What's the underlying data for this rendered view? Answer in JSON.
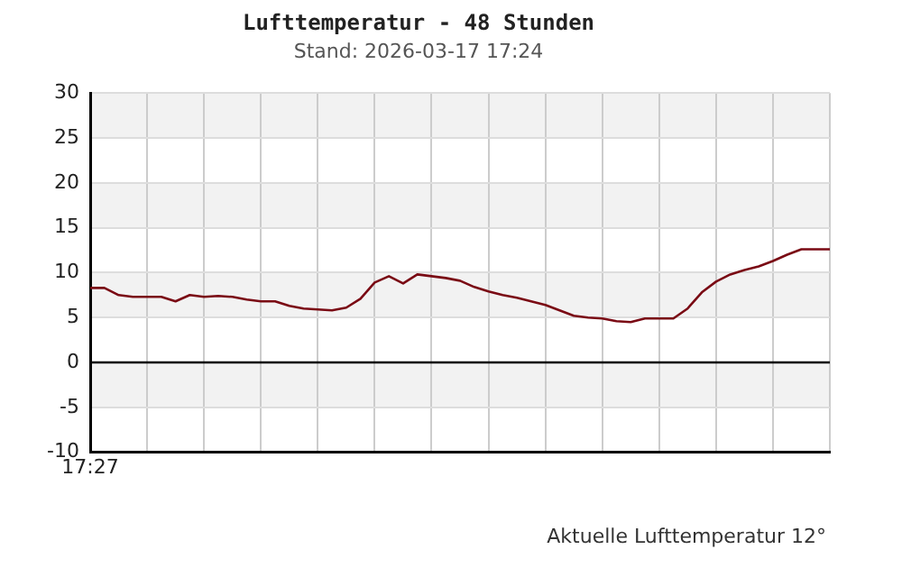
{
  "chart_data": {
    "type": "line",
    "title": "Lufttemperatur - 48 Stunden",
    "subtitle": "Stand: 2026-03-17 17:24",
    "categories": [
      "17:27",
      null,
      null,
      null,
      null,
      null,
      null,
      null,
      null,
      null,
      null,
      null,
      null,
      null,
      null,
      null,
      null,
      null,
      null,
      null,
      null,
      null,
      null,
      null,
      null,
      null,
      null,
      null,
      null,
      null,
      null,
      null,
      null,
      null,
      null,
      null,
      null,
      null,
      null,
      null,
      null,
      null,
      null,
      null,
      null,
      null,
      null,
      null,
      null,
      null,
      null,
      null,
      null
    ],
    "series": [
      {
        "color": "#7a0a14",
        "values": [
          8.3,
          8.3,
          7.5,
          7.3,
          7.3,
          7.3,
          6.8,
          7.5,
          7.3,
          7.4,
          7.3,
          7.0,
          6.8,
          6.8,
          6.3,
          6.0,
          5.9,
          5.8,
          6.1,
          7.1,
          8.9,
          9.6,
          8.8,
          9.8,
          9.6,
          9.4,
          9.1,
          8.4,
          7.9,
          7.5,
          7.2,
          6.8,
          6.4,
          5.8,
          5.2,
          5.0,
          4.9,
          4.6,
          4.5,
          4.9,
          4.9,
          4.9,
          6.0,
          7.8,
          9.0,
          9.8,
          10.3,
          10.7,
          11.3,
          12.0,
          12.6,
          12.6,
          12.6
        ]
      }
    ],
    "ylim": [
      -10,
      30
    ],
    "yticks": [
      -10,
      -5,
      0,
      5,
      10,
      15,
      20,
      25,
      30
    ],
    "grid": true,
    "marker": "none",
    "line_style": "solid",
    "bands": [
      {
        "axis": "y",
        "from": 25,
        "to": 30,
        "color": "#f2f2f2"
      },
      {
        "axis": "y",
        "from": 15,
        "to": 20,
        "color": "#f2f2f2"
      },
      {
        "axis": "y",
        "from": 5,
        "to": 10,
        "color": "#f2f2f2"
      },
      {
        "axis": "y",
        "from": -5,
        "to": 0,
        "color": "#f2f2f2"
      }
    ],
    "ref_lines": [
      {
        "axis": "y",
        "value": 0,
        "color": "#000000"
      }
    ],
    "annotations": [
      "Aktuelle Lufttemperatur 12°"
    ]
  }
}
